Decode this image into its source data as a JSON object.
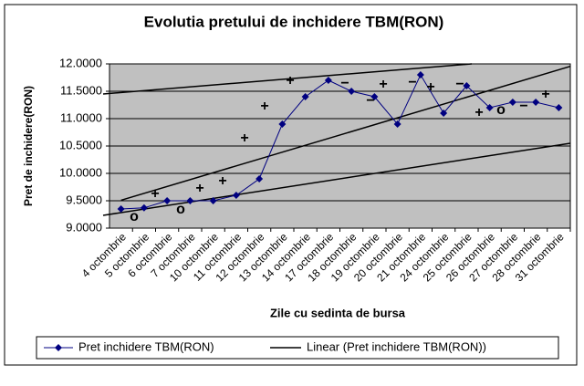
{
  "chart_data": {
    "type": "line",
    "title": "Evolutia pretului de inchidere TBM(RON)",
    "x_label": "Zile cu sedinta de bursa",
    "y_label": "Pret de inchidere(RON)",
    "categories": [
      "4 octombrie",
      "5 octombrie",
      "6 octombrie",
      "7 octombrie",
      "10 octombrie",
      "11 octombrie",
      "12 octombrie",
      "13 octombrie",
      "14 octombrie",
      "17 octombrie",
      "18 octombrie",
      "19 octombrie",
      "20 octombrie",
      "21 octombrie",
      "24 octombrie",
      "25 octombrie",
      "26 octombrie",
      "27 octombrie",
      "28 octombrie",
      "31 octombrie"
    ],
    "series": [
      {
        "name": "Pret inchidere TBM(RON)",
        "color": "#000080",
        "values": [
          9.35,
          9.37,
          9.5,
          9.5,
          9.5,
          9.6,
          9.9,
          10.9,
          11.4,
          11.7,
          11.5,
          11.4,
          10.9,
          11.8,
          11.1,
          11.6,
          11.2,
          11.3,
          11.3,
          11.2
        ]
      }
    ],
    "trendline": {
      "name": "Linear (Pret inchidere TBM(RON))",
      "color": "#000000"
    },
    "ylim": [
      9,
      12
    ],
    "yticks": [
      {
        "value": 9,
        "label": "9.0000"
      },
      {
        "value": 9.5,
        "label": "9.5000"
      },
      {
        "value": 10,
        "label": "10.0000"
      },
      {
        "value": 10.5,
        "label": "10.5000"
      },
      {
        "value": 11,
        "label": "11.0000"
      },
      {
        "value": 11.5,
        "label": "11.5000"
      },
      {
        "value": 12,
        "label": "12.0000"
      }
    ],
    "grid": true,
    "plot_background": "#c0c0c0",
    "annotations": [
      "o",
      "+",
      "o",
      "+",
      "+",
      "+",
      "+",
      "+",
      "−",
      "−",
      "+",
      "−",
      "+",
      "−",
      "+",
      "o",
      "−",
      "+"
    ]
  }
}
